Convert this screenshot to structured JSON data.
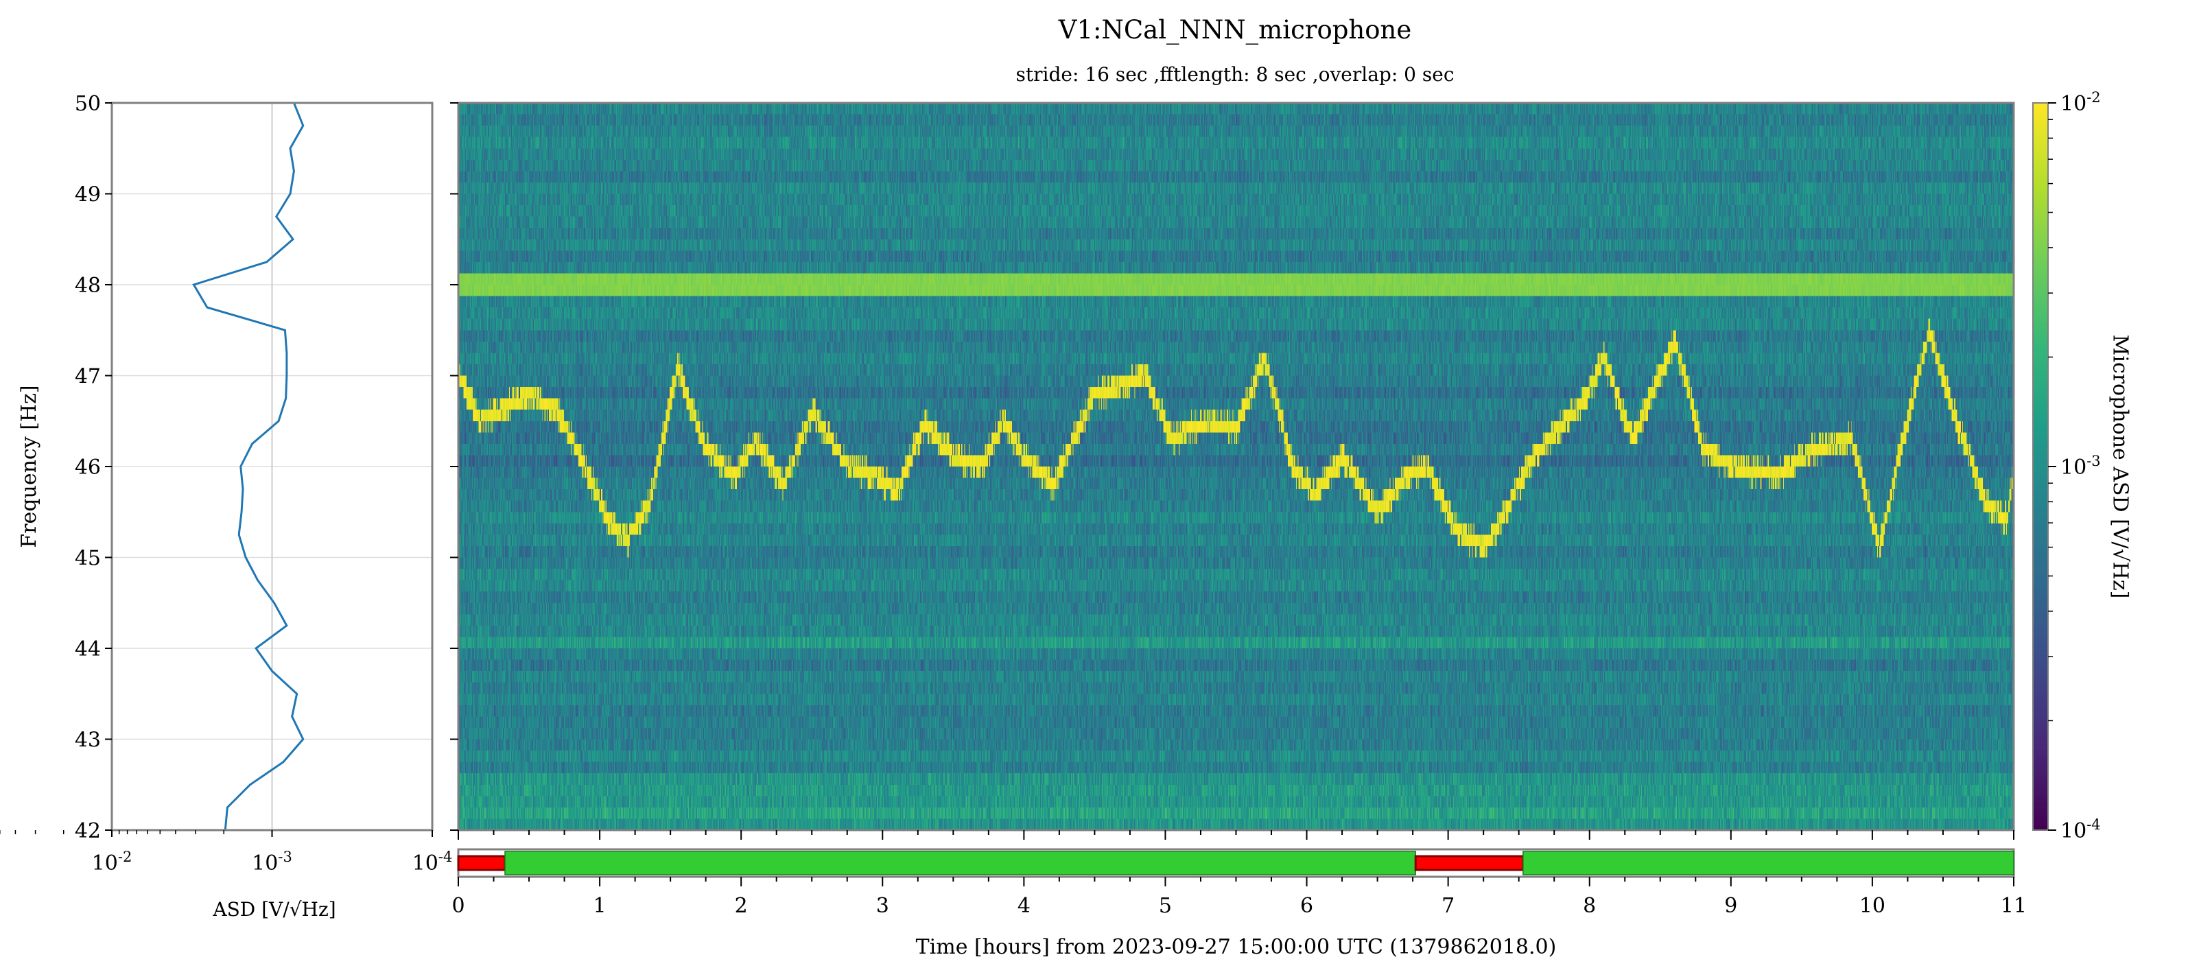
{
  "chart_data": [
    {
      "type": "line",
      "name": "asd-profile",
      "xlabel": "ASD [V/√Hz]",
      "ylabel": "Frequency [Hz]",
      "xscale": "log",
      "xlim": [
        0.01,
        0.0001
      ],
      "ylim": [
        42,
        50
      ],
      "xticks": [
        "10^-2",
        "10^-3",
        "10^-4"
      ],
      "yticks": [
        "42",
        "43",
        "44",
        "45",
        "46",
        "47",
        "48",
        "49",
        "50"
      ],
      "grid": true,
      "color": "#1f77b4",
      "freq": [
        50,
        49.75,
        49.5,
        49.25,
        49,
        48.75,
        48.5,
        48.25,
        48,
        47.75,
        47.5,
        47.25,
        47,
        46.75,
        46.5,
        46.25,
        46,
        45.75,
        45.5,
        45.25,
        45,
        44.75,
        44.5,
        44.25,
        44,
        43.75,
        43.5,
        43.25,
        43,
        42.75,
        42.5,
        42.25,
        42
      ],
      "asd": [
        0.00073,
        0.00064,
        0.00077,
        0.00073,
        0.00077,
        0.00094,
        0.00074,
        0.00108,
        0.00308,
        0.00254,
        0.00083,
        0.00081,
        0.00081,
        0.00082,
        0.00091,
        0.00133,
        0.00157,
        0.00152,
        0.00155,
        0.00161,
        0.00146,
        0.00123,
        0.00097,
        0.00081,
        0.00126,
        0.001,
        0.0007,
        0.00075,
        0.00064,
        0.00085,
        0.00137,
        0.0019,
        0.00196
      ]
    },
    {
      "type": "heatmap",
      "name": "spectrogram",
      "title": "V1:NCal_NNN_microphone",
      "subtitle": "stride: 16 sec ,fftlength: 8 sec ,overlap: 0 sec",
      "xlabel": "Time [hours] from 2023-09-27 15:00:00 UTC (1379862018.0)",
      "xlim": [
        0,
        11
      ],
      "ylim": [
        42,
        50
      ],
      "xticks": [
        "0",
        "1",
        "2",
        "3",
        "4",
        "5",
        "6",
        "7",
        "8",
        "9",
        "10",
        "11"
      ],
      "colormap": "viridis",
      "colorbar": {
        "label": "Microphone ASD [V/√Hz]",
        "scale": "log",
        "range": [
          0.0001,
          0.01
        ],
        "ticks": [
          "10^-2",
          "10^-3",
          "10^-4"
        ]
      },
      "time_step_s": 16,
      "freq_step_hz": 0.125,
      "persistent_lines_hz": [
        48.0,
        44.06
      ],
      "wandering_line": {
        "hours": [
          0,
          0.15,
          0.5,
          0.7,
          0.9,
          1.05,
          1.2,
          1.35,
          1.55,
          1.75,
          1.95,
          2.1,
          2.3,
          2.5,
          2.75,
          2.95,
          3.1,
          3.3,
          3.5,
          3.7,
          3.85,
          4.0,
          4.2,
          4.5,
          4.85,
          5.05,
          5.3,
          5.5,
          5.7,
          5.9,
          6.05,
          6.25,
          6.5,
          6.7,
          6.85,
          7.05,
          7.25,
          7.4,
          7.6,
          7.95,
          8.1,
          8.3,
          8.6,
          8.8,
          9.0,
          9.3,
          9.6,
          9.85,
          10.05,
          10.2,
          10.4,
          10.55,
          10.8,
          10.95,
          11
        ],
        "freq_hz": [
          47.0,
          46.5,
          46.8,
          46.6,
          46.0,
          45.4,
          45.2,
          45.6,
          47.1,
          46.2,
          45.9,
          46.3,
          45.8,
          46.6,
          46.0,
          45.9,
          45.7,
          46.5,
          46.1,
          46.0,
          46.5,
          46.1,
          45.8,
          46.8,
          47.0,
          46.3,
          46.5,
          46.4,
          47.2,
          46.0,
          45.7,
          46.1,
          45.5,
          45.9,
          46.0,
          45.3,
          45.1,
          45.5,
          46.1,
          46.7,
          47.2,
          46.3,
          47.4,
          46.2,
          46.0,
          45.9,
          46.2,
          46.3,
          45.1,
          46.2,
          47.5,
          46.7,
          45.6,
          45.4,
          46.0
        ]
      }
    },
    {
      "type": "bar",
      "name": "segment-state",
      "segments": [
        {
          "start": 0,
          "end": 0.33,
          "state": "off",
          "color": "#ff0000"
        },
        {
          "start": 0.33,
          "end": 6.77,
          "state": "on",
          "color": "#33cc33"
        },
        {
          "start": 6.77,
          "end": 7.53,
          "state": "off",
          "color": "#ff0000"
        },
        {
          "start": 7.53,
          "end": 11,
          "state": "on",
          "color": "#33cc33"
        }
      ]
    }
  ]
}
